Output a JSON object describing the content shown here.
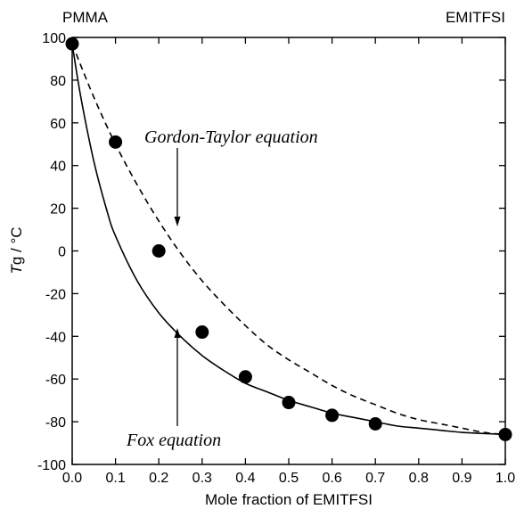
{
  "chart_data": {
    "type": "scatter",
    "xlabel": "Mole fraction of EMITFSI",
    "ylabel_italic": "T",
    "ylabel_rest": "g / °C",
    "xlim": [
      0.0,
      1.0
    ],
    "ylim": [
      -100,
      100
    ],
    "xticks": [
      "0.0",
      "0.1",
      "0.2",
      "0.3",
      "0.4",
      "0.5",
      "0.6",
      "0.7",
      "0.8",
      "0.9",
      "1.0"
    ],
    "yticks": [
      "-100",
      "-80",
      "-60",
      "-40",
      "-20",
      "0",
      "20",
      "40",
      "60",
      "80",
      "100"
    ],
    "corner_left": "PMMA",
    "corner_right": "EMITFSI",
    "grid": false,
    "points": {
      "x": [
        0.0,
        0.1,
        0.2,
        0.3,
        0.4,
        0.5,
        0.6,
        0.7,
        1.0
      ],
      "y": [
        97,
        51,
        0,
        -38,
        -59,
        -71,
        -77,
        -81,
        -86
      ]
    },
    "curves": [
      {
        "label": "Gordon-Taylor equation",
        "style": "dashed",
        "x": [
          0.0,
          0.05,
          0.1,
          0.15,
          0.2,
          0.25,
          0.3,
          0.35,
          0.4,
          0.45,
          0.5,
          0.55,
          0.6,
          0.65,
          0.7,
          0.75,
          0.8,
          0.85,
          0.9,
          0.95,
          1.0
        ],
        "y": [
          97,
          72,
          50,
          31,
          14,
          -1,
          -14,
          -25,
          -35,
          -44,
          -51,
          -57,
          -63,
          -68,
          -72,
          -76,
          -79,
          -81,
          -83,
          -85,
          -86
        ]
      },
      {
        "label": "Fox equation",
        "style": "solid",
        "x": [
          0.0,
          0.02,
          0.05,
          0.08,
          0.1,
          0.15,
          0.2,
          0.25,
          0.3,
          0.35,
          0.4,
          0.45,
          0.5,
          0.55,
          0.6,
          0.65,
          0.7,
          0.75,
          0.8,
          0.85,
          0.9,
          0.95,
          1.0
        ],
        "y": [
          97,
          72,
          42,
          19,
          7,
          -14,
          -29,
          -40,
          -49,
          -56,
          -62,
          -66,
          -70,
          -73,
          -76,
          -78,
          -80,
          -82,
          -83,
          -84,
          -85,
          -85.5,
          -86
        ]
      }
    ]
  },
  "annotations": {
    "gordon_taylor": "Gordon-Taylor equation",
    "fox": "Fox equation"
  }
}
